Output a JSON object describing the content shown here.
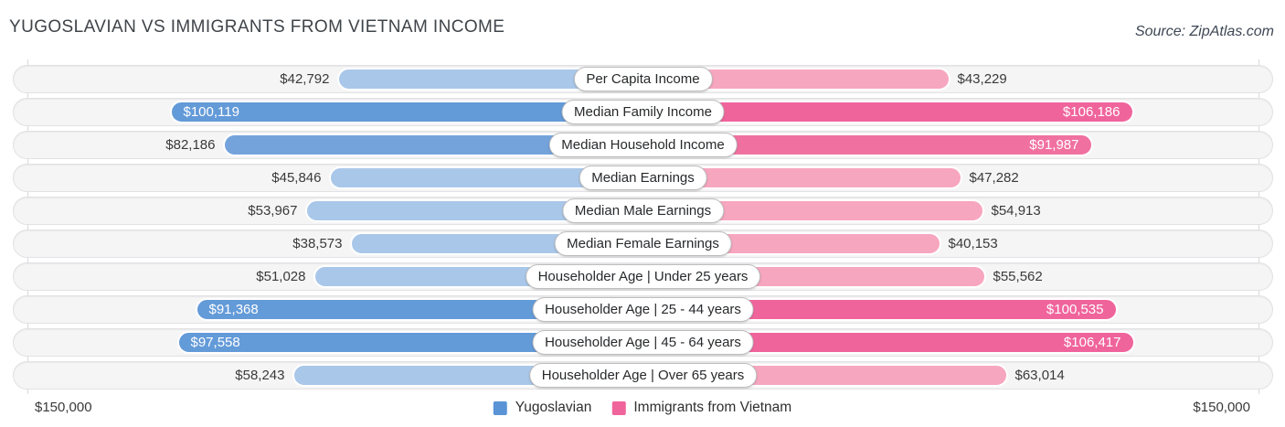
{
  "header": {
    "title": "YUGOSLAVIAN VS IMMIGRANTS FROM VIETNAM INCOME",
    "source": "Source: ZipAtlas.com"
  },
  "legend": [
    {
      "label": "Yugoslavian",
      "color": "#5a94d6"
    },
    {
      "label": "Immigrants from Vietnam",
      "color": "#f0649c"
    }
  ],
  "footer": {
    "left_axis_label": "$150,000",
    "right_axis_label": "$150,000"
  },
  "chart_data": {
    "type": "bar",
    "orientation": "diverging_horizontal",
    "title": "YUGOSLAVIAN VS IMMIGRANTS FROM VIETNAM INCOME",
    "xlim": [
      0,
      150000
    ],
    "axis_max_labels": {
      "left": "$150,000",
      "right": "$150,000"
    },
    "legend_position": "bottom-center",
    "grid": "edge-lines-only",
    "categories": [
      "Per Capita Income",
      "Median Family Income",
      "Median Household Income",
      "Median Earnings",
      "Median Male Earnings",
      "Median Female Earnings",
      "Householder Age | Under 25 years",
      "Householder Age | 25 - 44 years",
      "Householder Age | 45 - 64 years",
      "Householder Age | Over 65 years"
    ],
    "series": [
      {
        "name": "Yugoslavian",
        "side": "left",
        "values": [
          42792,
          100119,
          82186,
          45846,
          53967,
          38573,
          51028,
          91368,
          97558,
          58243
        ],
        "labels": [
          "$42,792",
          "$100,119",
          "$82,186",
          "$45,846",
          "$53,967",
          "$38,573",
          "$51,028",
          "$91,368",
          "$97,558",
          "$58,243"
        ],
        "bar_colors": [
          "#a9c7e9",
          "#639ad8",
          "#74a3dc",
          "#a9c7e9",
          "#a9c7e9",
          "#a9c7e9",
          "#a9c7e9",
          "#639ad8",
          "#639ad8",
          "#a9c7e9"
        ],
        "label_inside": [
          false,
          true,
          false,
          false,
          false,
          false,
          false,
          true,
          true,
          false
        ]
      },
      {
        "name": "Immigrants from Vietnam",
        "side": "right",
        "values": [
          43229,
          106186,
          91987,
          47282,
          54913,
          40153,
          55562,
          100535,
          106417,
          63014
        ],
        "labels": [
          "$43,229",
          "$106,186",
          "$91,987",
          "$47,282",
          "$54,913",
          "$40,153",
          "$55,562",
          "$100,535",
          "$106,417",
          "$63,014"
        ],
        "bar_colors": [
          "#f7a6c0",
          "#f0649c",
          "#f071a0",
          "#f7a6c0",
          "#f7a6c0",
          "#f7a6c0",
          "#f7a6c0",
          "#f0649c",
          "#f0649c",
          "#f7a6c0"
        ],
        "label_inside": [
          false,
          true,
          true,
          false,
          false,
          false,
          false,
          true,
          true,
          false
        ]
      }
    ]
  }
}
